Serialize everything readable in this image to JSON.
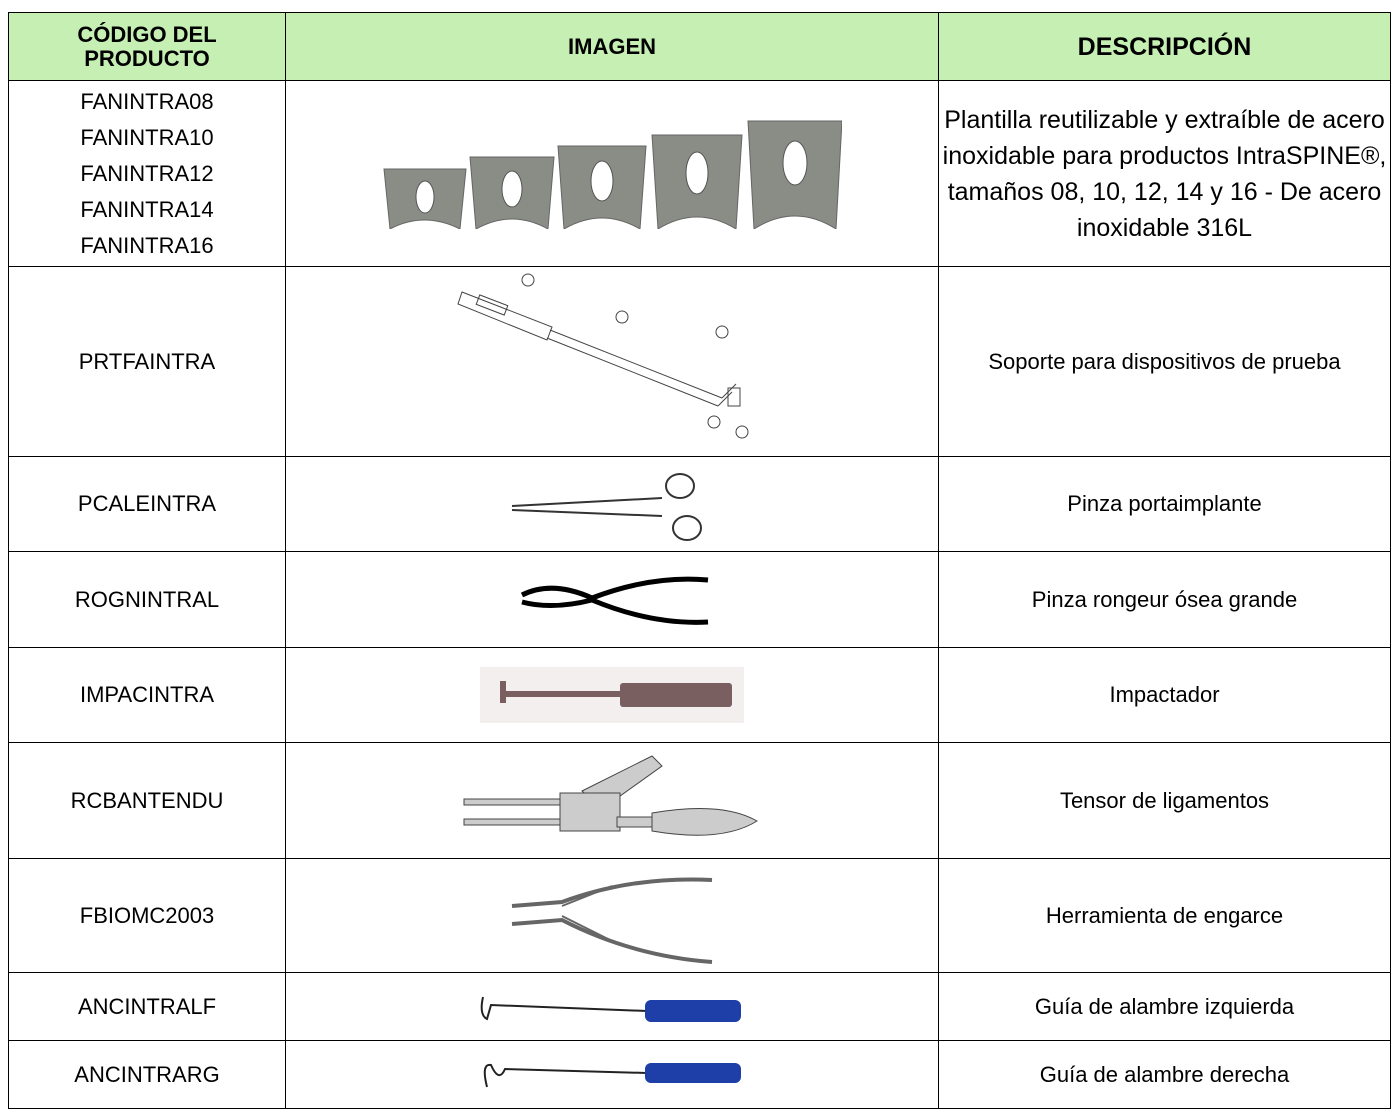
{
  "table": {
    "header": [
      "CÓDIGO DEL PRODUCTO",
      "IMAGEN",
      "DESCRIPCIÓN"
    ],
    "rows": [
      {
        "codes": [
          "FANINTRA08",
          "FANINTRA10",
          "FANINTRA12",
          "FANINTRA14",
          "FANINTRA16"
        ],
        "description": "Plantilla reutilizable y extraíble de acero inoxidable para productos IntraSPINE®, tamaños 08, 10, 12, 14 y 16 - De acero inoxidable 316L"
      },
      {
        "codes": [
          "PRTFAINTRA"
        ],
        "description": "Soporte para dispositivos de prueba"
      },
      {
        "codes": [
          "PCALEINTRA"
        ],
        "description": "Pinza portaimplante"
      },
      {
        "codes": [
          "ROGNINTRAL"
        ],
        "description": "Pinza rongeur ósea grande"
      },
      {
        "codes": [
          "IMPACINTRA"
        ],
        "description": "Impactador"
      },
      {
        "codes": [
          "RCBANTENDU"
        ],
        "description": "Tensor de ligamentos"
      },
      {
        "codes": [
          "FBIOMC2003"
        ],
        "description": "Herramienta de engarce"
      },
      {
        "codes": [
          "ANCINTRALF"
        ],
        "description": "Guía de alambre izquierda"
      },
      {
        "codes": [
          "ANCINTRARG"
        ],
        "description": "Guía de alambre derecha"
      }
    ]
  }
}
